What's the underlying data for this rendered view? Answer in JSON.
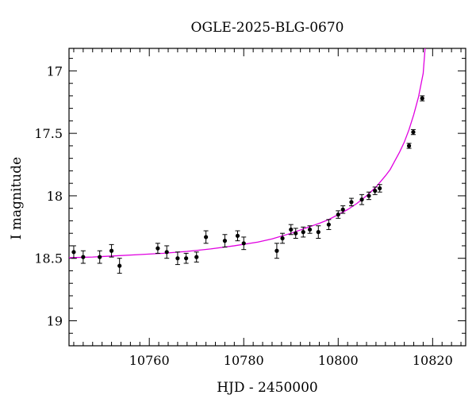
{
  "chart_data": {
    "type": "scatter",
    "title": "OGLE-2025-BLG-0670",
    "xlabel": "HJD - 2450000",
    "ylabel": "I magnitude",
    "xlim": [
      10743,
      10827
    ],
    "ylim": [
      19.2,
      16.82
    ],
    "y_inverted": true,
    "grid": false,
    "x_ticks": [
      10760,
      10780,
      10800,
      10820
    ],
    "x_tick_labels": [
      "10760",
      "10780",
      "10800",
      "10820"
    ],
    "y_ticks": [
      17,
      17.5,
      18,
      18.5,
      19
    ],
    "y_tick_labels": [
      "17",
      "17.5",
      "18",
      "18.5",
      "19"
    ],
    "colors": {
      "points": "#000000",
      "model": "#e000e0"
    },
    "series": [
      {
        "kind": "points_with_errorbars",
        "points": [
          {
            "x": 10744.0,
            "y": 18.45,
            "err": 0.05
          },
          {
            "x": 10746.0,
            "y": 18.49,
            "err": 0.05
          },
          {
            "x": 10749.5,
            "y": 18.49,
            "err": 0.05
          },
          {
            "x": 10752.0,
            "y": 18.44,
            "err": 0.05
          },
          {
            "x": 10753.7,
            "y": 18.56,
            "err": 0.06
          },
          {
            "x": 10761.8,
            "y": 18.42,
            "err": 0.04
          },
          {
            "x": 10763.7,
            "y": 18.45,
            "err": 0.05
          },
          {
            "x": 10766.0,
            "y": 18.5,
            "err": 0.05
          },
          {
            "x": 10767.8,
            "y": 18.5,
            "err": 0.04
          },
          {
            "x": 10770.0,
            "y": 18.49,
            "err": 0.04
          },
          {
            "x": 10772.0,
            "y": 18.33,
            "err": 0.05
          },
          {
            "x": 10776.0,
            "y": 18.36,
            "err": 0.05
          },
          {
            "x": 10778.7,
            "y": 18.32,
            "err": 0.04
          },
          {
            "x": 10780.0,
            "y": 18.38,
            "err": 0.05
          },
          {
            "x": 10787.0,
            "y": 18.44,
            "err": 0.06
          },
          {
            "x": 10788.2,
            "y": 18.34,
            "err": 0.04
          },
          {
            "x": 10790.0,
            "y": 18.27,
            "err": 0.04
          },
          {
            "x": 10791.0,
            "y": 18.3,
            "err": 0.04
          },
          {
            "x": 10792.6,
            "y": 18.29,
            "err": 0.04
          },
          {
            "x": 10794.0,
            "y": 18.27,
            "err": 0.03
          },
          {
            "x": 10795.8,
            "y": 18.29,
            "err": 0.05
          },
          {
            "x": 10798.0,
            "y": 18.23,
            "err": 0.04
          },
          {
            "x": 10800.0,
            "y": 18.15,
            "err": 0.03
          },
          {
            "x": 10801.0,
            "y": 18.11,
            "err": 0.03
          },
          {
            "x": 10802.8,
            "y": 18.05,
            "err": 0.03
          },
          {
            "x": 10805.0,
            "y": 18.03,
            "err": 0.04
          },
          {
            "x": 10806.5,
            "y": 18.0,
            "err": 0.03
          },
          {
            "x": 10807.8,
            "y": 17.96,
            "err": 0.03
          },
          {
            "x": 10808.8,
            "y": 17.94,
            "err": 0.03
          },
          {
            "x": 10815.0,
            "y": 17.6,
            "err": 0.02
          },
          {
            "x": 10815.9,
            "y": 17.49,
            "err": 0.02
          },
          {
            "x": 10817.8,
            "y": 17.22,
            "err": 0.02
          }
        ]
      },
      {
        "kind": "model_curve",
        "x": [
          10743,
          10748,
          10753,
          10758,
          10763,
          10768,
          10773,
          10778,
          10783,
          10786,
          10790,
          10793,
          10796,
          10798,
          10800,
          10802,
          10804,
          10806,
          10808,
          10810,
          10811,
          10812,
          10813,
          10814,
          10815,
          10816,
          10817,
          10818,
          10818.4
        ],
        "y": [
          18.495,
          18.49,
          18.48,
          18.47,
          18.46,
          18.445,
          18.425,
          18.4,
          18.37,
          18.345,
          18.3,
          18.26,
          18.22,
          18.19,
          18.15,
          18.11,
          18.06,
          18.0,
          17.93,
          17.84,
          17.79,
          17.72,
          17.65,
          17.57,
          17.47,
          17.35,
          17.21,
          17.02,
          16.82
        ]
      }
    ]
  }
}
